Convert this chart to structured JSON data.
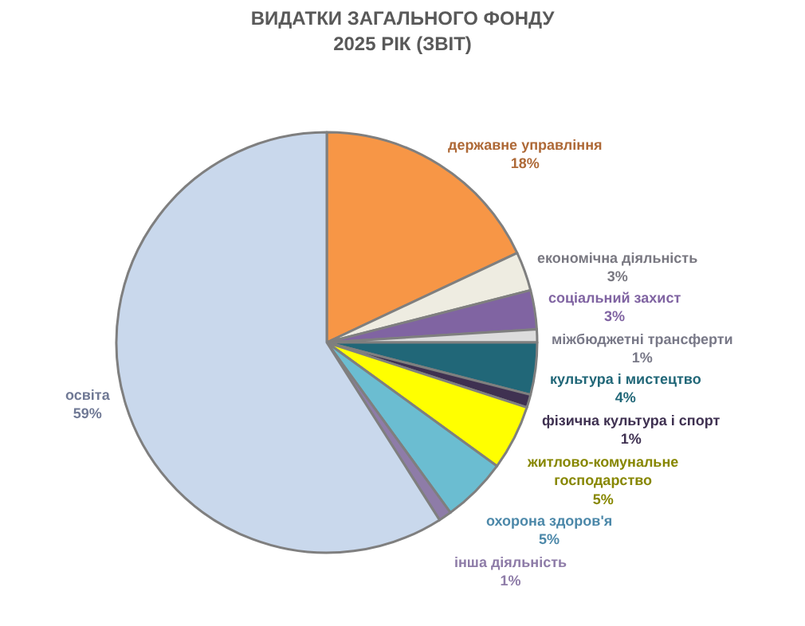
{
  "chart_data": {
    "type": "pie",
    "title": "ВИДАТКИ ЗАГАЛЬНОГО ФОНДУ\n2025 РІК (ЗВІТ)",
    "categories": [
      "державне управління",
      "економічна діяльність",
      "соціальний захист",
      "міжбюджетні трансферти",
      "культура і мистецтво",
      "фізична культура і спорт",
      "житлово-комунальне господарство",
      "охорона здоров'я",
      "інша діяльність",
      "освіта"
    ],
    "values": [
      18,
      3,
      3,
      1,
      4,
      1,
      5,
      5,
      1,
      59
    ],
    "value_labels": [
      "18%",
      "3%",
      "3%",
      "1%",
      "4%",
      "1%",
      "5%",
      "5%",
      "1%",
      "59%"
    ],
    "colors": [
      "#f79646",
      "#eeece1",
      "#8064a2",
      "#dcdcdc",
      "#216778",
      "#3f3151",
      "#ffff00",
      "#6bbdd1",
      "#8e7ca8",
      "#c9d8ec"
    ],
    "legend": false
  }
}
